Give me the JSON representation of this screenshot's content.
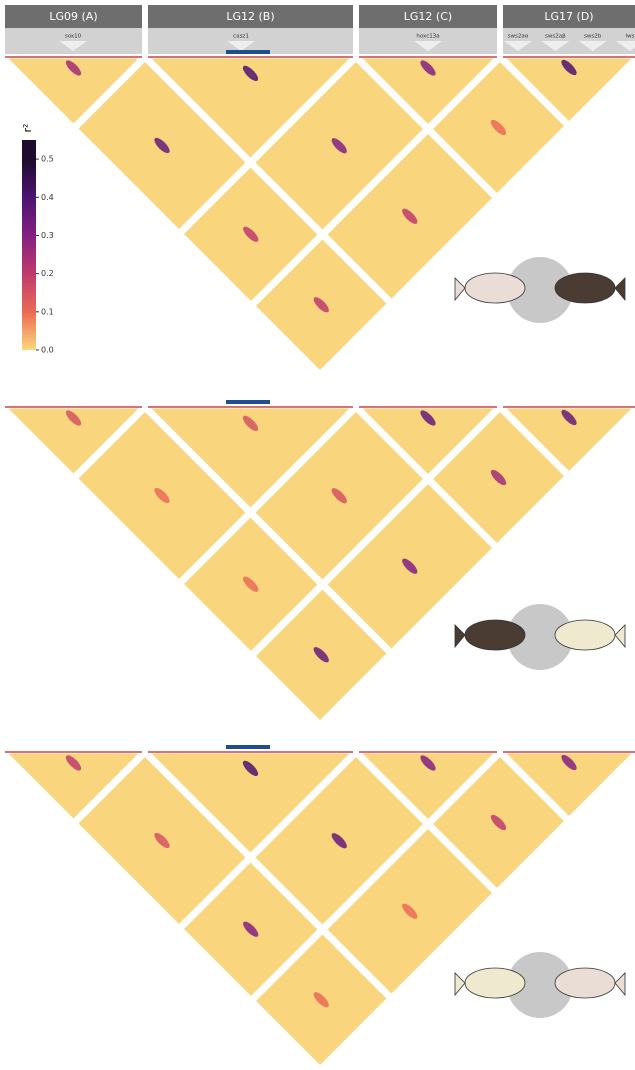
{
  "chart_data": {
    "type": "heatmap",
    "colorbar": {
      "label": "r²",
      "lim": [
        0,
        0.55
      ],
      "ticks": [
        {
          "value": 0,
          "label": "0.0"
        },
        0.1,
        0.2,
        0.3,
        0.4,
        0.5
      ],
      "colors": [
        "#fbd77b",
        "#ea6a55",
        "#bf3a6c",
        "#832081",
        "#4c1370",
        "#1c0b2e"
      ]
    },
    "segments": [
      {
        "label": "LG09 (A)",
        "genes": [
          "sox10"
        ]
      },
      {
        "label": "LG12 (B)",
        "genes": [
          "casz1"
        ]
      },
      {
        "label": "LG12 (C)",
        "genes": [
          "hoxc13a"
        ]
      },
      {
        "label": "LG17 (D)",
        "genes": [
          "sws2aα",
          "sws2aβ",
          "sws2b",
          "lws"
        ]
      }
    ],
    "panels": [
      {
        "peaks": [
          0.25,
          0.35,
          0.2,
          0.2,
          0.4,
          0.3,
          0.2,
          0.3,
          0.1,
          0.4
        ]
      },
      {
        "peaks": [
          0.15,
          0.1,
          0.1,
          0.35,
          0.15,
          0.15,
          0.3,
          0.35,
          0.25,
          0.35
        ]
      },
      {
        "peaks": [
          0.2,
          0.15,
          0.3,
          0.1,
          0.4,
          0.35,
          0.1,
          0.3,
          0.2,
          0.3
        ]
      }
    ]
  }
}
